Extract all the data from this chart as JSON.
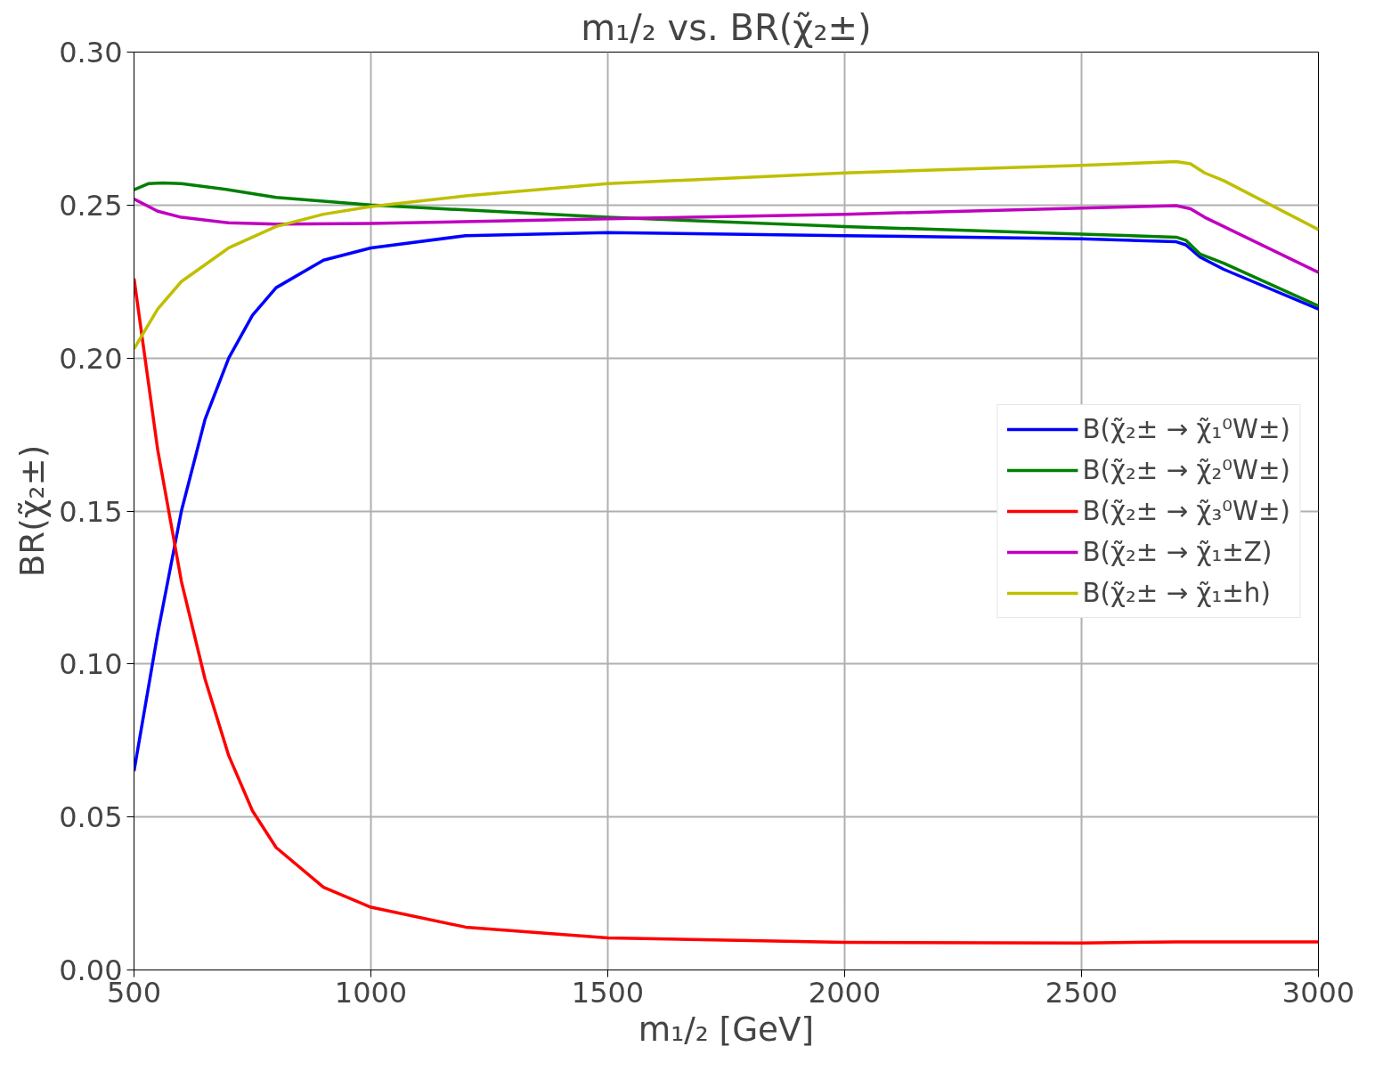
{
  "chart_data": {
    "type": "line",
    "title": "m₁/₂ vs. BR(χ̃₂±)",
    "xlabel": "m₁/₂ [GeV]",
    "ylabel": "BR(χ̃₂±)",
    "xlim": [
      500,
      3000
    ],
    "xticks": [
      500,
      1000,
      1500,
      2000,
      2500,
      3000
    ],
    "ylim": [
      0,
      0.3
    ],
    "yticks": [
      {
        "value": 0,
        "label": "0.00"
      },
      {
        "value": 0.05,
        "label": "0.05"
      },
      {
        "value": 0.1,
        "label": "0.10"
      },
      {
        "value": 0.15,
        "label": "0.15"
      },
      {
        "value": 0.2,
        "label": "0.20"
      },
      {
        "value": 0.25,
        "label": "0.25"
      },
      {
        "value": 0.3,
        "label": "0.30"
      }
    ],
    "grid": true,
    "legend": "right",
    "line_style": "solid",
    "series": [
      {
        "name": "B(χ̃₂± → χ̃₁⁰W±)",
        "color": "#0000ff",
        "x": [
          500,
          550,
          600,
          650,
          700,
          750,
          800,
          900,
          1000,
          1200,
          1500,
          2000,
          2500,
          2700,
          2720,
          2750,
          2800,
          3000
        ],
        "values": [
          0.065,
          0.11,
          0.15,
          0.18,
          0.2,
          0.214,
          0.223,
          0.232,
          0.236,
          0.24,
          0.241,
          0.24,
          0.239,
          0.238,
          0.237,
          0.233,
          0.229,
          0.216
        ]
      },
      {
        "name": "B(χ̃₂± → χ̃₂⁰W±)",
        "color": "#008000",
        "x": [
          500,
          530,
          560,
          600,
          700,
          800,
          1000,
          1500,
          2000,
          2500,
          2700,
          2720,
          2750,
          2800,
          3000
        ],
        "values": [
          0.255,
          0.257,
          0.2572,
          0.257,
          0.255,
          0.2525,
          0.25,
          0.246,
          0.243,
          0.2405,
          0.2395,
          0.2385,
          0.234,
          0.231,
          0.217
        ]
      },
      {
        "name": "B(χ̃₂± → χ̃₃⁰W±)",
        "color": "#ff0000",
        "x": [
          500,
          550,
          600,
          650,
          700,
          750,
          800,
          900,
          1000,
          1200,
          1500,
          2000,
          2500,
          2700,
          3000
        ],
        "values": [
          0.226,
          0.17,
          0.127,
          0.095,
          0.07,
          0.052,
          0.04,
          0.027,
          0.0205,
          0.014,
          0.0105,
          0.009,
          0.0088,
          0.0092,
          0.0092
        ]
      },
      {
        "name": "B(χ̃₂± → χ̃₁±Z)",
        "color": "#bf00bf",
        "x": [
          500,
          550,
          600,
          700,
          800,
          1000,
          1500,
          2000,
          2500,
          2700,
          2730,
          2760,
          2800,
          3000
        ],
        "values": [
          0.252,
          0.248,
          0.246,
          0.2442,
          0.2438,
          0.244,
          0.2455,
          0.247,
          0.249,
          0.2498,
          0.2488,
          0.246,
          0.243,
          0.228
        ]
      },
      {
        "name": "B(χ̃₂± → χ̃₁±h)",
        "color": "#bfbf00",
        "x": [
          500,
          550,
          600,
          700,
          800,
          900,
          1000,
          1200,
          1500,
          2000,
          2500,
          2700,
          2730,
          2760,
          2800,
          3000
        ],
        "values": [
          0.203,
          0.216,
          0.225,
          0.236,
          0.243,
          0.247,
          0.2495,
          0.253,
          0.257,
          0.2605,
          0.263,
          0.2642,
          0.2635,
          0.2605,
          0.258,
          0.242
        ]
      }
    ]
  }
}
